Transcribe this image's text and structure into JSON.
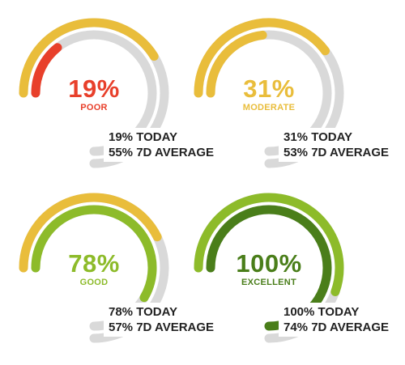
{
  "colors": {
    "track": "#d9d9d9",
    "poor": "#e8402b",
    "moderate": "#e9bd3b",
    "good": "#8dbb2a",
    "excellent_today": "#4a7e1a",
    "excellent_avg": "#8dbb2a"
  },
  "gauges": [
    {
      "id": "poor",
      "percent_label": "19%",
      "level_label": "POOR",
      "today_label": "19% TODAY",
      "average_label": "55% 7D AVERAGE",
      "today_value": 19,
      "average_value": 55,
      "today_color": "#e8402b",
      "average_color": "#e9bd3b",
      "text_color": "#e8402b"
    },
    {
      "id": "moderate",
      "percent_label": "31%",
      "level_label": "MODERATE",
      "today_label": "31% TODAY",
      "average_label": "53% 7D AVERAGE",
      "today_value": 31,
      "average_value": 53,
      "today_color": "#e9bd3b",
      "average_color": "#e9bd3b",
      "text_color": "#e9bd3b"
    },
    {
      "id": "good",
      "percent_label": "78%",
      "level_label": "GOOD",
      "today_label": "78% TODAY",
      "average_label": "57% 7D AVERAGE",
      "today_value": 78,
      "average_value": 57,
      "today_color": "#8dbb2a",
      "average_color": "#e9bd3b",
      "text_color": "#8dbb2a"
    },
    {
      "id": "excellent",
      "percent_label": "100%",
      "level_label": "EXCELLENT",
      "today_label": "100% TODAY",
      "average_label": "74% 7D AVERAGE",
      "today_value": 100,
      "average_value": 74,
      "today_color": "#4a7e1a",
      "average_color": "#8dbb2a",
      "text_color": "#4a7e1a"
    }
  ]
}
